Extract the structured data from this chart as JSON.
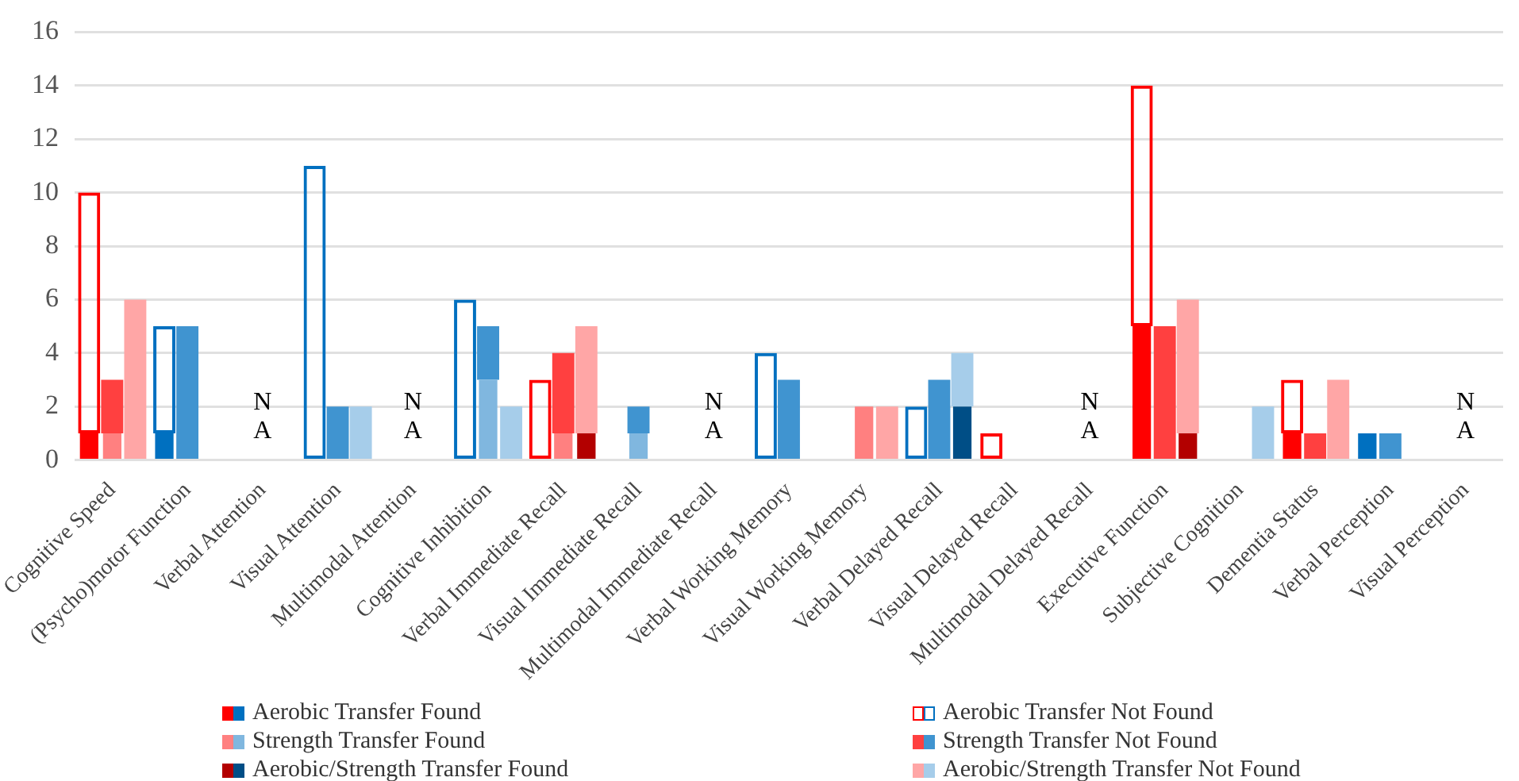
{
  "chart_data": {
    "type": "bar",
    "grid": "y",
    "legend": "bottom",
    "categories": [
      "Cognitive Speed",
      "(Psycho)motor Function",
      "Verbal Attention",
      "Visual Attention",
      "Multimodal Attention",
      "Cognitive Inhibition",
      "Verbal Immediate Recall",
      "Visual Immediate Recall",
      "Multimodal Immediate Recall",
      "Verbal Working Memory",
      "Visual Working Memory",
      "Verbal Delayed Recall",
      "Visual Delayed Recall",
      "Multimodal Delayed Recall",
      "Executive Function",
      "Subjective Cognition",
      "Dementia Status",
      "Verbal Perception",
      "Visual Perception"
    ],
    "ylim": [
      0,
      16
    ],
    "yticks": [
      0,
      2,
      4,
      6,
      8,
      10,
      12,
      14,
      16
    ],
    "series": [
      {
        "name": "Aerobic Transfer Found",
        "values": [
          1,
          1,
          null,
          0,
          null,
          0,
          0,
          null,
          null,
          0,
          null,
          0,
          null,
          null,
          5,
          null,
          1,
          1,
          null
        ],
        "colors": [
          "#ff0000",
          "#0070c0",
          null,
          "#0070c0",
          null,
          "#0070c0",
          "#ff0000",
          null,
          null,
          "#0070c0",
          null,
          "#0070c0",
          "#ff0000",
          null,
          "#ff0000",
          null,
          "#ff0000",
          "#0070c0",
          null
        ]
      },
      {
        "name": "Aerobic Transfer Not Found",
        "values": [
          9,
          4,
          null,
          11,
          null,
          6,
          3,
          null,
          null,
          4,
          null,
          2,
          1,
          null,
          9,
          null,
          2,
          null,
          null
        ],
        "base": [
          1,
          1,
          null,
          0,
          null,
          0,
          0,
          null,
          null,
          0,
          null,
          0,
          0,
          null,
          5,
          null,
          1,
          null,
          null
        ],
        "colors": [
          "#ff0000",
          "#0070c0",
          null,
          "#0070c0",
          null,
          "#0070c0",
          "#ff0000",
          null,
          null,
          "#0070c0",
          null,
          "#0070c0",
          "#ff0000",
          null,
          "#ff0000",
          null,
          "#ff0000",
          "#0070c0",
          null
        ]
      },
      {
        "name": "Strength Transfer Found",
        "values": [
          1,
          0,
          null,
          0,
          null,
          3,
          1,
          1,
          null,
          0,
          2,
          0,
          null,
          null,
          0,
          null,
          0,
          0,
          null
        ],
        "colors": [
          "#ff8080",
          "#80b7df",
          null,
          "#80b7df",
          null,
          "#80b7df",
          "#ff8080",
          "#80b7df",
          null,
          "#80b7df",
          "#ff8080",
          "#80b7df",
          null,
          null,
          "#ff8080",
          null,
          "#ff8080",
          "#80b7df",
          null
        ]
      },
      {
        "name": "Strength Transfer Not Found",
        "values": [
          2,
          5,
          null,
          2,
          null,
          2,
          3,
          1,
          null,
          3,
          null,
          3,
          null,
          null,
          5,
          null,
          1,
          1,
          null
        ],
        "base": [
          1,
          0,
          null,
          0,
          null,
          3,
          1,
          1,
          null,
          0,
          null,
          0,
          null,
          null,
          0,
          null,
          0,
          0,
          null
        ],
        "colors": [
          "#ff4040",
          "#4094d0",
          null,
          "#4094d0",
          null,
          "#4094d0",
          "#ff4040",
          "#4094d0",
          null,
          "#4094d0",
          "#ff4040",
          "#4094d0",
          null,
          null,
          "#ff4040",
          null,
          "#ff4040",
          "#4094d0",
          null
        ]
      },
      {
        "name": "Aerobic/Strength Transfer Found",
        "values": [
          0,
          null,
          null,
          0,
          null,
          0,
          1,
          null,
          null,
          null,
          0,
          2,
          null,
          null,
          1,
          0,
          0,
          null,
          null
        ],
        "colors": [
          "#b30000",
          null,
          null,
          "#004e86",
          null,
          "#004e86",
          "#b30000",
          null,
          null,
          null,
          "#b30000",
          "#004e86",
          null,
          null,
          "#b30000",
          "#004e86",
          "#b30000",
          null,
          null
        ]
      },
      {
        "name": "Aerobic/Strength Transfer Not Found",
        "values": [
          6,
          null,
          null,
          2,
          null,
          2,
          4,
          null,
          null,
          null,
          2,
          2,
          null,
          null,
          5,
          2,
          3,
          null,
          null
        ],
        "base": [
          0,
          null,
          null,
          0,
          null,
          0,
          1,
          null,
          null,
          null,
          0,
          2,
          null,
          null,
          1,
          0,
          0,
          null,
          null
        ],
        "colors": [
          "#ffa6a6",
          null,
          null,
          "#a6cdea",
          null,
          "#a6cdea",
          "#ffa6a6",
          null,
          null,
          null,
          "#ffa6a6",
          "#a6cdea",
          null,
          null,
          "#ffa6a6",
          "#a6cdea",
          "#ffa6a6",
          null,
          null
        ]
      }
    ],
    "annotations": [
      "N A",
      "N A",
      "N A",
      "N A",
      "N A"
    ]
  }
}
